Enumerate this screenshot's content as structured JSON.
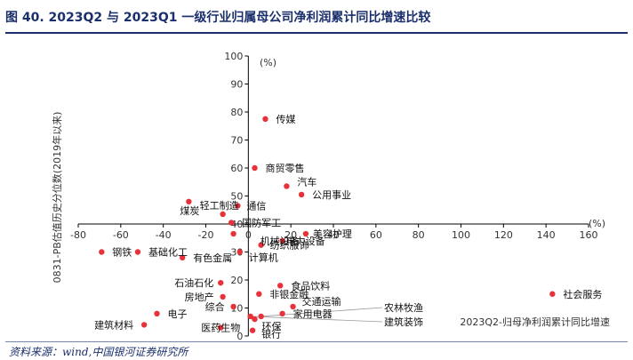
{
  "title": "图 40. 2023Q2 与 2023Q1 一级行业归属母公司净利润累计同比增速比较",
  "source": "资料来源：wind,中国银河证券研究所",
  "colors": {
    "title": "#1a2f6b",
    "point": "#e8323a",
    "axis": "#000000"
  },
  "chart_data": {
    "type": "scatter",
    "title": "",
    "xlabel": "2023Q2-归母净利润累计同比增速",
    "ylabel": "0831-PB估值历史分位数(2019年以来)",
    "x_unit": "(%)",
    "y_unit": "(%)",
    "xlim": [
      -80,
      160
    ],
    "ylim": [
      0,
      100
    ],
    "xticks": [
      -80,
      -60,
      -40,
      -20,
      0,
      20,
      40,
      60,
      80,
      100,
      120,
      140,
      160
    ],
    "yticks": [
      0,
      10,
      20,
      30,
      40,
      50,
      60,
      70,
      80,
      90,
      100
    ],
    "grid": false,
    "points": [
      {
        "name": "传媒",
        "x": 8,
        "y": 77.5
      },
      {
        "name": "商贸零售",
        "x": 3,
        "y": 60
      },
      {
        "name": "汽车",
        "x": 18,
        "y": 53.5
      },
      {
        "name": "公用事业",
        "x": 25,
        "y": 50.5
      },
      {
        "name": "通信",
        "x": -5,
        "y": 46.5
      },
      {
        "name": "煤炭",
        "x": -28,
        "y": 48
      },
      {
        "name": "轻工制造",
        "x": -12,
        "y": 43.5
      },
      {
        "name": "国防军工",
        "x": -8,
        "y": 40.5
      },
      {
        "name": "机械设备",
        "x": -7,
        "y": 36.5
      },
      {
        "name": "美容护理",
        "x": 27,
        "y": 36.5
      },
      {
        "name": "纺织服饰",
        "x": 6,
        "y": 32.5
      },
      {
        "name": "电力设备",
        "x": 16,
        "y": 34
      },
      {
        "name": "计算机",
        "x": -4,
        "y": 30
      },
      {
        "name": "钢铁",
        "x": -69,
        "y": 30
      },
      {
        "name": "基础化工",
        "x": -52,
        "y": 30
      },
      {
        "name": "有色金属",
        "x": -31,
        "y": 28
      },
      {
        "name": "石油石化",
        "x": -13,
        "y": 19
      },
      {
        "name": "非银金融",
        "x": 5,
        "y": 15
      },
      {
        "name": "食品饮料",
        "x": 15,
        "y": 18
      },
      {
        "name": "房地产",
        "x": -12,
        "y": 14
      },
      {
        "name": "综合",
        "x": -7,
        "y": 10.5
      },
      {
        "name": "交通运输",
        "x": 21,
        "y": 10.5
      },
      {
        "name": "电子",
        "x": -43,
        "y": 8
      },
      {
        "name": "家用电器",
        "x": 16,
        "y": 8
      },
      {
        "name": "农林牧渔",
        "x": 6,
        "y": 7
      },
      {
        "name": "建筑装饰",
        "x": 1,
        "y": 7
      },
      {
        "name": "环保",
        "x": 3,
        "y": 6
      },
      {
        "name": "建筑材料",
        "x": -49,
        "y": 4
      },
      {
        "name": "医药生物",
        "x": -13,
        "y": 3
      },
      {
        "name": "银行",
        "x": 2,
        "y": 2
      },
      {
        "name": "社会服务",
        "x": 143,
        "y": 15
      }
    ]
  }
}
